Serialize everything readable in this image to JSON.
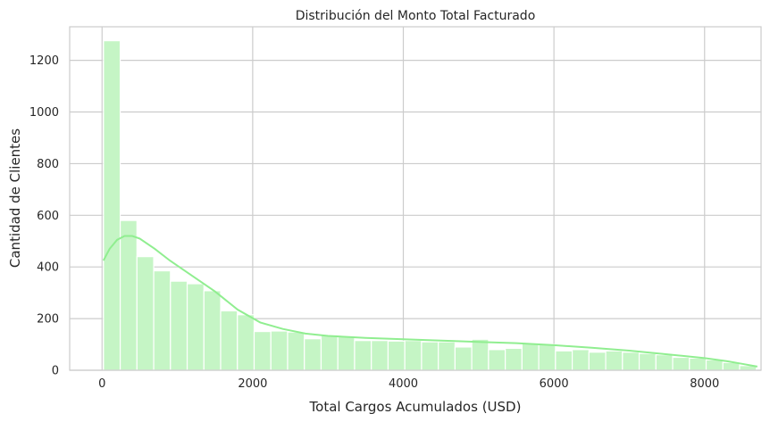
{
  "chart_data": {
    "type": "bar",
    "title": "Distribución del Monto Total Facturado",
    "xlabel": "Total Cargos Acumulados (USD)",
    "ylabel": "Cantidad de Clientes",
    "xlim": [
      -430,
      8750
    ],
    "ylim": [
      0,
      1330
    ],
    "xticks": [
      0,
      2000,
      4000,
      6000,
      8000
    ],
    "yticks": [
      0,
      200,
      400,
      600,
      800,
      1000,
      1200
    ],
    "grid": true,
    "colors": {
      "bar_fill": "#c5f5c5",
      "bar_edge": "#ffffff",
      "kde_line": "#90ee90",
      "grid": "#cccccc",
      "frame": "#cccccc"
    },
    "bins": {
      "start": 18.8,
      "width": 222.28,
      "counts": [
        1276,
        580,
        440,
        385,
        345,
        335,
        308,
        230,
        215,
        150,
        152,
        148,
        122,
        137,
        130,
        115,
        115,
        113,
        115,
        110,
        110,
        90,
        120,
        80,
        85,
        105,
        100,
        75,
        80,
        70,
        75,
        70,
        65,
        60,
        50,
        47,
        40,
        30,
        18
      ]
    },
    "kde": {
      "x": [
        18.8,
        100,
        200,
        300,
        400,
        500,
        700,
        900,
        1200,
        1500,
        1800,
        2100,
        2400,
        2700,
        3000,
        3500,
        4000,
        4500,
        5000,
        5500,
        6000,
        6500,
        7000,
        7500,
        8000,
        8300,
        8500,
        8700
      ],
      "y": [
        425,
        470,
        505,
        520,
        520,
        510,
        470,
        425,
        365,
        305,
        235,
        185,
        160,
        142,
        133,
        125,
        120,
        115,
        110,
        105,
        97,
        87,
        76,
        62,
        47,
        35,
        25,
        14
      ]
    }
  }
}
